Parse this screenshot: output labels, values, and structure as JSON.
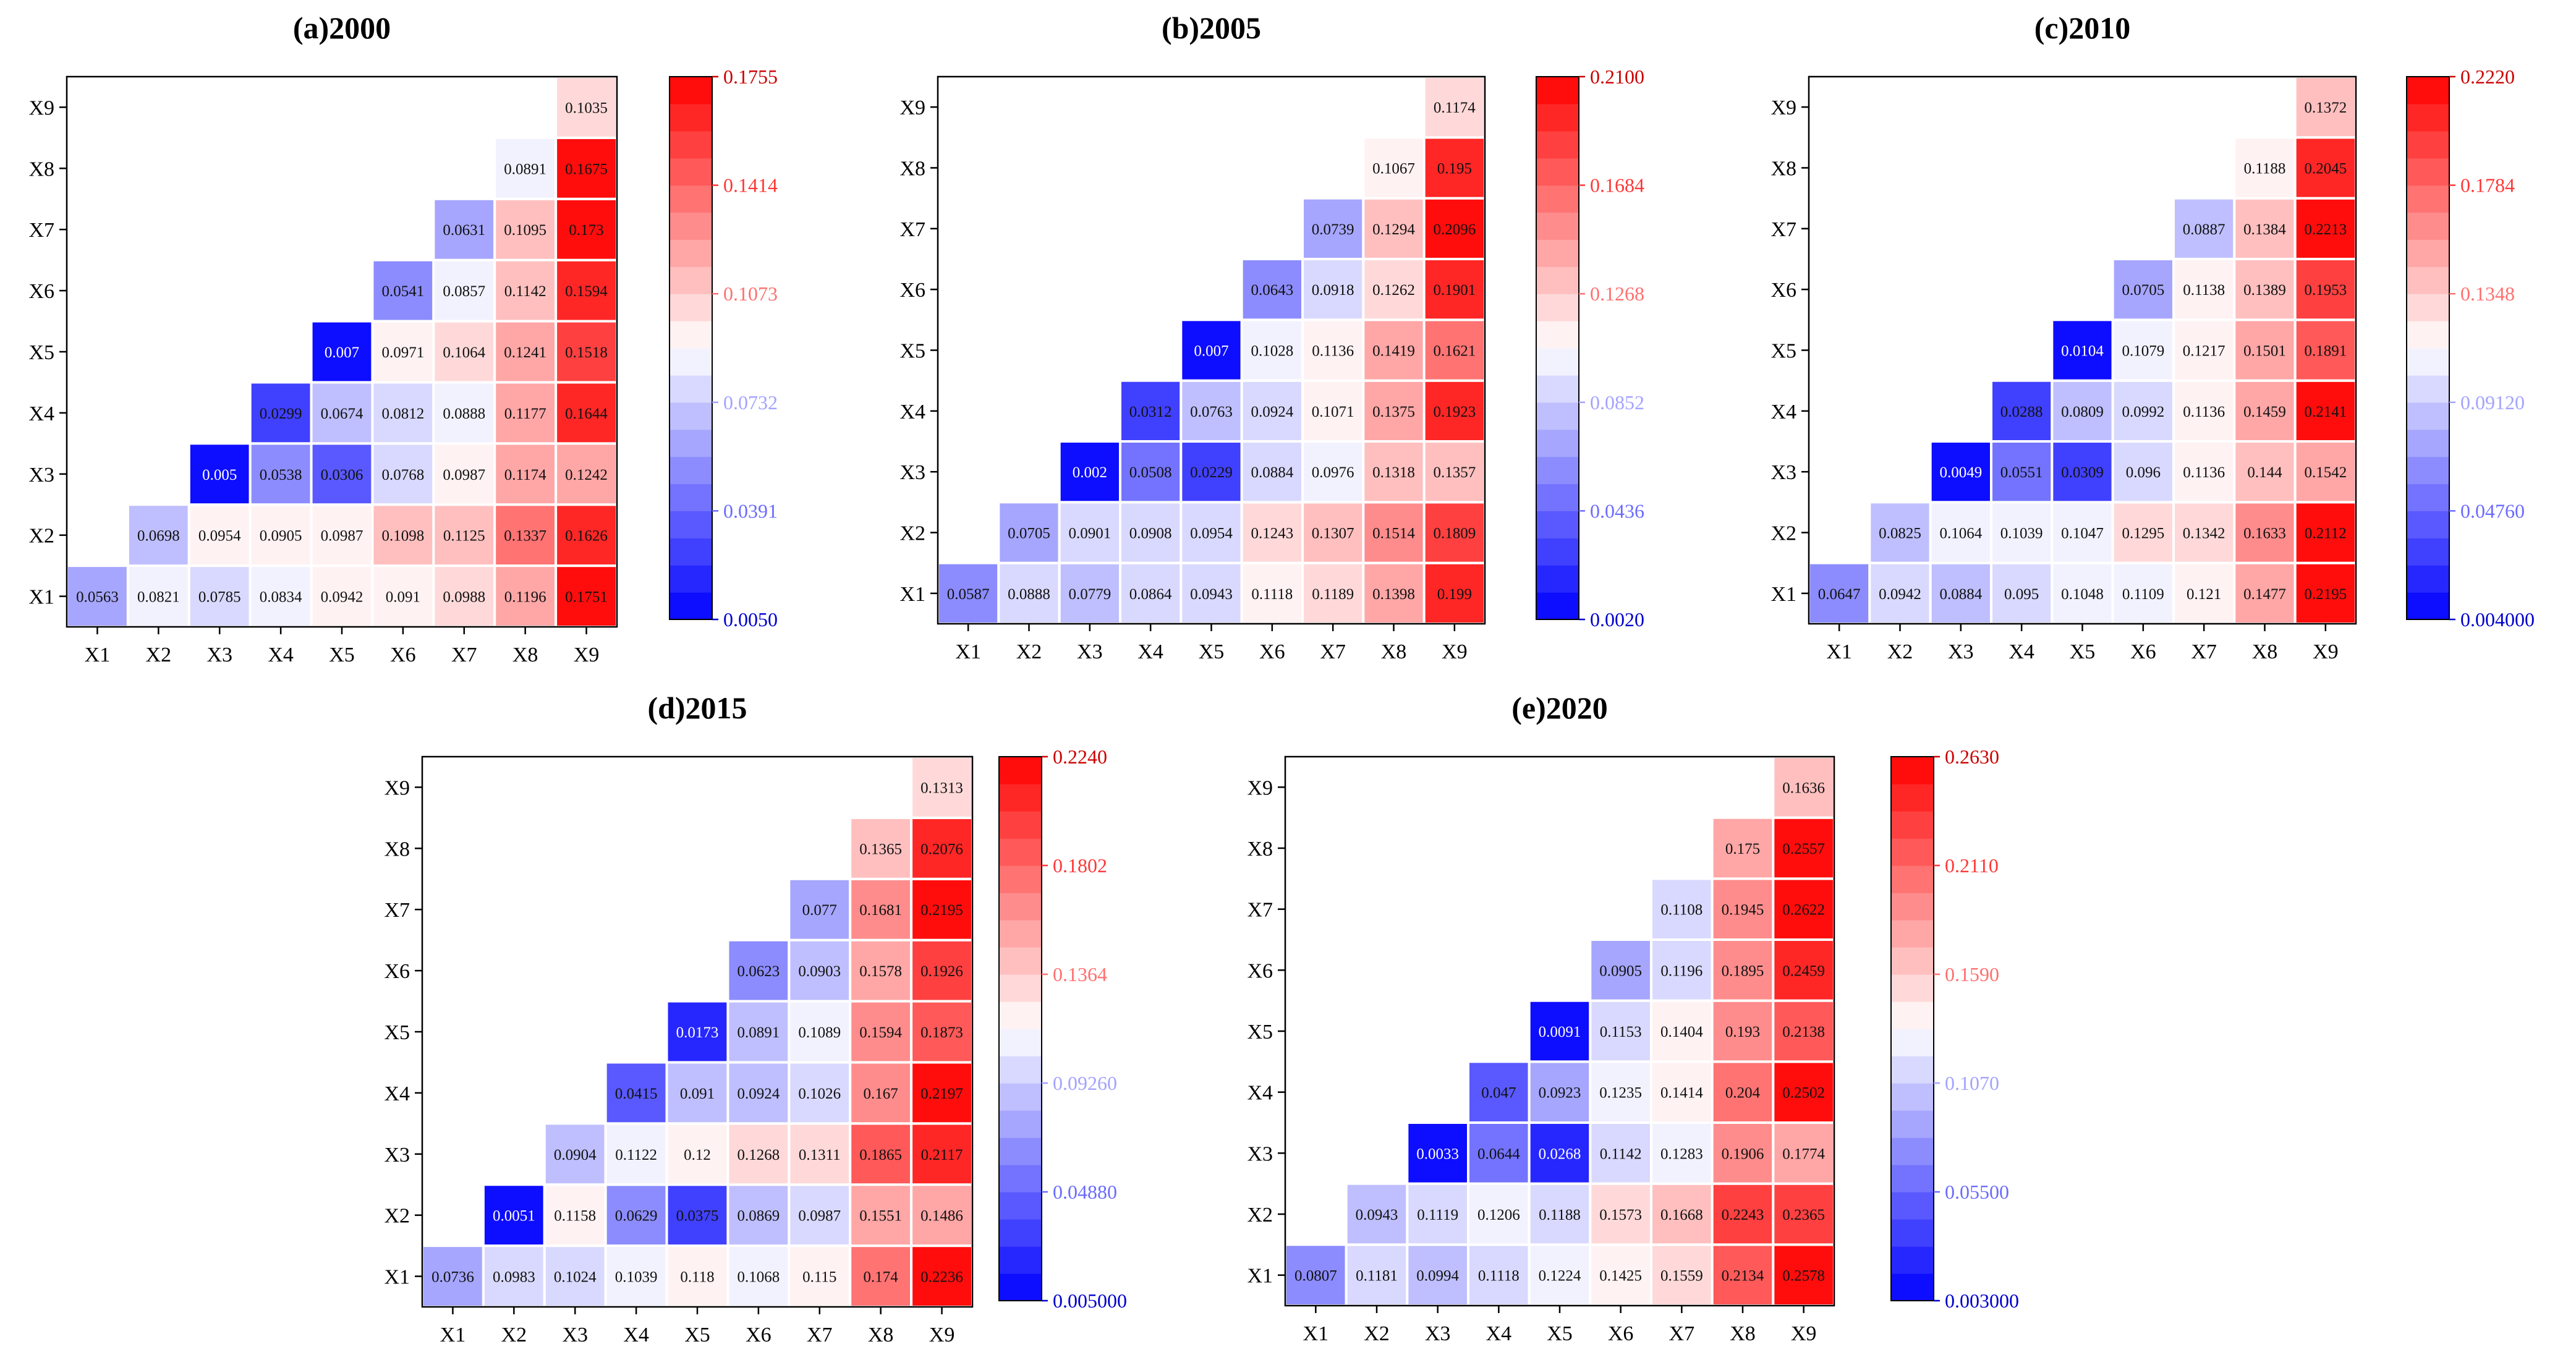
{
  "chart_data": [
    {
      "type": "heatmap",
      "title": "(a)2000",
      "x_labels": [
        "X1",
        "X2",
        "X3",
        "X4",
        "X5",
        "X6",
        "X7",
        "X8",
        "X9"
      ],
      "y_labels": [
        "X1",
        "X2",
        "X3",
        "X4",
        "X5",
        "X6",
        "X7",
        "X8",
        "X9"
      ],
      "vmin": 0.005,
      "vmax": 0.1755,
      "colorbar_ticks": [
        "0.1755",
        "0.1414",
        "0.1073",
        "0.0732",
        "0.0391",
        "0.0050"
      ],
      "cells": [
        [
          "0.0563",
          "0.0821",
          "0.0785",
          "0.0834",
          "0.0942",
          "0.091",
          "0.0988",
          "0.1196",
          "0.1751"
        ],
        [
          null,
          "0.0698",
          "0.0954",
          "0.0905",
          "0.0987",
          "0.1098",
          "0.1125",
          "0.1337",
          "0.1626"
        ],
        [
          null,
          null,
          "0.005",
          "0.0538",
          "0.0306",
          "0.0768",
          "0.0987",
          "0.1174",
          "0.1242"
        ],
        [
          null,
          null,
          null,
          "0.0299",
          "0.0674",
          "0.0812",
          "0.0888",
          "0.1177",
          "0.1644"
        ],
        [
          null,
          null,
          null,
          null,
          "0.007",
          "0.0971",
          "0.1064",
          "0.1241",
          "0.1518"
        ],
        [
          null,
          null,
          null,
          null,
          null,
          "0.0541",
          "0.0857",
          "0.1142",
          "0.1594"
        ],
        [
          null,
          null,
          null,
          null,
          null,
          null,
          "0.0631",
          "0.1095",
          "0.173"
        ],
        [
          null,
          null,
          null,
          null,
          null,
          null,
          null,
          "0.0891",
          "0.1675"
        ],
        [
          null,
          null,
          null,
          null,
          null,
          null,
          null,
          null,
          "0.1035"
        ]
      ]
    },
    {
      "type": "heatmap",
      "title": "(b)2005",
      "x_labels": [
        "X1",
        "X2",
        "X3",
        "X4",
        "X5",
        "X6",
        "X7",
        "X8",
        "X9"
      ],
      "y_labels": [
        "X1",
        "X2",
        "X3",
        "X4",
        "X5",
        "X6",
        "X7",
        "X8",
        "X9"
      ],
      "vmin": 0.002,
      "vmax": 0.21,
      "colorbar_ticks": [
        "0.2100",
        "0.1684",
        "0.1268",
        "0.0852",
        "0.0436",
        "0.0020"
      ],
      "cells": [
        [
          "0.0587",
          "0.0888",
          "0.0779",
          "0.0864",
          "0.0943",
          "0.1118",
          "0.1189",
          "0.1398",
          "0.199"
        ],
        [
          null,
          "0.0705",
          "0.0901",
          "0.0908",
          "0.0954",
          "0.1243",
          "0.1307",
          "0.1514",
          "0.1809"
        ],
        [
          null,
          null,
          "0.002",
          "0.0508",
          "0.0229",
          "0.0884",
          "0.0976",
          "0.1318",
          "0.1357"
        ],
        [
          null,
          null,
          null,
          "0.0312",
          "0.0763",
          "0.0924",
          "0.1071",
          "0.1375",
          "0.1923"
        ],
        [
          null,
          null,
          null,
          null,
          "0.007",
          "0.1028",
          "0.1136",
          "0.1419",
          "0.1621"
        ],
        [
          null,
          null,
          null,
          null,
          null,
          "0.0643",
          "0.0918",
          "0.1262",
          "0.1901"
        ],
        [
          null,
          null,
          null,
          null,
          null,
          null,
          "0.0739",
          "0.1294",
          "0.2096"
        ],
        [
          null,
          null,
          null,
          null,
          null,
          null,
          null,
          "0.1067",
          "0.195"
        ],
        [
          null,
          null,
          null,
          null,
          null,
          null,
          null,
          null,
          "0.1174"
        ]
      ]
    },
    {
      "type": "heatmap",
      "title": "(c)2010",
      "x_labels": [
        "X1",
        "X2",
        "X3",
        "X4",
        "X5",
        "X6",
        "X7",
        "X8",
        "X9"
      ],
      "y_labels": [
        "X1",
        "X2",
        "X3",
        "X4",
        "X5",
        "X6",
        "X7",
        "X8",
        "X9"
      ],
      "vmin": 0.004,
      "vmax": 0.222,
      "colorbar_ticks": [
        "0.2220",
        "0.1784",
        "0.1348",
        "0.09120",
        "0.04760",
        "0.004000"
      ],
      "cells": [
        [
          "0.0647",
          "0.0942",
          "0.0884",
          "0.095",
          "0.1048",
          "0.1109",
          "0.121",
          "0.1477",
          "0.2195"
        ],
        [
          null,
          "0.0825",
          "0.1064",
          "0.1039",
          "0.1047",
          "0.1295",
          "0.1342",
          "0.1633",
          "0.2112"
        ],
        [
          null,
          null,
          "0.0049",
          "0.0551",
          "0.0309",
          "0.096",
          "0.1136",
          "0.144",
          "0.1542"
        ],
        [
          null,
          null,
          null,
          "0.0288",
          "0.0809",
          "0.0992",
          "0.1136",
          "0.1459",
          "0.2141"
        ],
        [
          null,
          null,
          null,
          null,
          "0.0104",
          "0.1079",
          "0.1217",
          "0.1501",
          "0.1891"
        ],
        [
          null,
          null,
          null,
          null,
          null,
          "0.0705",
          "0.1138",
          "0.1389",
          "0.1953"
        ],
        [
          null,
          null,
          null,
          null,
          null,
          null,
          "0.0887",
          "0.1384",
          "0.2213"
        ],
        [
          null,
          null,
          null,
          null,
          null,
          null,
          null,
          "0.1188",
          "0.2045"
        ],
        [
          null,
          null,
          null,
          null,
          null,
          null,
          null,
          null,
          "0.1372"
        ]
      ]
    },
    {
      "type": "heatmap",
      "title": "(d)2015",
      "x_labels": [
        "X1",
        "X2",
        "X3",
        "X4",
        "X5",
        "X6",
        "X7",
        "X8",
        "X9"
      ],
      "y_labels": [
        "X1",
        "X2",
        "X3",
        "X4",
        "X5",
        "X6",
        "X7",
        "X8",
        "X9"
      ],
      "vmin": 0.005,
      "vmax": 0.224,
      "colorbar_ticks": [
        "0.2240",
        "0.1802",
        "0.1364",
        "0.09260",
        "0.04880",
        "0.005000"
      ],
      "cells": [
        [
          "0.0736",
          "0.0983",
          "0.1024",
          "0.1039",
          "0.118",
          "0.1068",
          "0.115",
          "0.174",
          "0.2236"
        ],
        [
          null,
          "0.0051",
          "0.1158",
          "0.0629",
          "0.0375",
          "0.0869",
          "0.0987",
          "0.1551",
          "0.1486"
        ],
        [
          null,
          null,
          "0.0904",
          "0.1122",
          "0.12",
          "0.1268",
          "0.1311",
          "0.1865",
          "0.2117"
        ],
        [
          null,
          null,
          null,
          "0.0415",
          "0.091",
          "0.0924",
          "0.1026",
          "0.167",
          "0.2197"
        ],
        [
          null,
          null,
          null,
          null,
          "0.0173",
          "0.0891",
          "0.1089",
          "0.1594",
          "0.1873"
        ],
        [
          null,
          null,
          null,
          null,
          null,
          "0.0623",
          "0.0903",
          "0.1578",
          "0.1926"
        ],
        [
          null,
          null,
          null,
          null,
          null,
          null,
          "0.077",
          "0.1681",
          "0.2195"
        ],
        [
          null,
          null,
          null,
          null,
          null,
          null,
          null,
          "0.1365",
          "0.2076"
        ],
        [
          null,
          null,
          null,
          null,
          null,
          null,
          null,
          null,
          "0.1313"
        ]
      ]
    },
    {
      "type": "heatmap",
      "title": "(e)2020",
      "x_labels": [
        "X1",
        "X2",
        "X3",
        "X4",
        "X5",
        "X6",
        "X7",
        "X8",
        "X9"
      ],
      "y_labels": [
        "X1",
        "X2",
        "X3",
        "X4",
        "X5",
        "X6",
        "X7",
        "X8",
        "X9"
      ],
      "vmin": 0.003,
      "vmax": 0.263,
      "colorbar_ticks": [
        "0.2630",
        "0.2110",
        "0.1590",
        "0.1070",
        "0.05500",
        "0.003000"
      ],
      "cells": [
        [
          "0.0807",
          "0.1181",
          "0.0994",
          "0.1118",
          "0.1224",
          "0.1425",
          "0.1559",
          "0.2134",
          "0.2578"
        ],
        [
          null,
          "0.0943",
          "0.1119",
          "0.1206",
          "0.1188",
          "0.1573",
          "0.1668",
          "0.2243",
          "0.2365"
        ],
        [
          null,
          null,
          "0.0033",
          "0.0644",
          "0.0268",
          "0.1142",
          "0.1283",
          "0.1906",
          "0.1774"
        ],
        [
          null,
          null,
          null,
          "0.047",
          "0.0923",
          "0.1235",
          "0.1414",
          "0.204",
          "0.2502"
        ],
        [
          null,
          null,
          null,
          null,
          "0.0091",
          "0.1153",
          "0.1404",
          "0.193",
          "0.2138"
        ],
        [
          null,
          null,
          null,
          null,
          null,
          "0.0905",
          "0.1196",
          "0.1895",
          "0.2459"
        ],
        [
          null,
          null,
          null,
          null,
          null,
          null,
          "0.1108",
          "0.1945",
          "0.2622"
        ],
        [
          null,
          null,
          null,
          null,
          null,
          null,
          null,
          "0.175",
          "0.2557"
        ],
        [
          null,
          null,
          null,
          null,
          null,
          null,
          null,
          null,
          "0.1636"
        ]
      ]
    }
  ],
  "colors": {
    "low": "#0000ff",
    "mid": "#ffffff",
    "high": "#ff0000",
    "tick_low": "#0000cc",
    "tick_high": "#cc0000",
    "axis": "#000000",
    "grid_line": "#ffffff"
  }
}
